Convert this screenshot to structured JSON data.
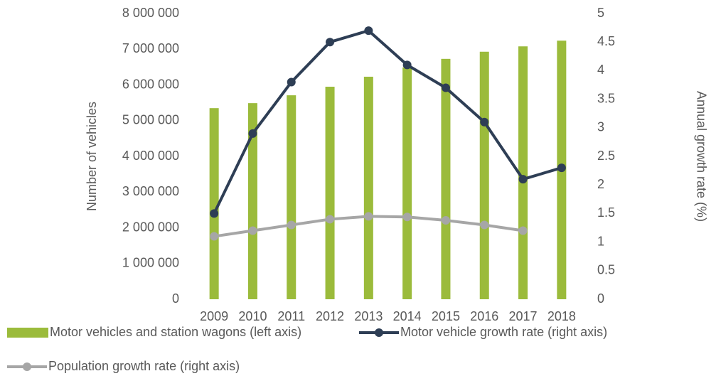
{
  "chart_data": {
    "type": "bar_line",
    "y_label": "Number of vehicles",
    "y2_label": "Annual growth rate (%)",
    "categories": [
      "2009",
      "2010",
      "2011",
      "2012",
      "2013",
      "2014",
      "2015",
      "2016",
      "2017",
      "2018"
    ],
    "series": [
      {
        "name": "Motor vehicles and station wagons (left axis)",
        "type": "bar",
        "color": "#9bbb3b",
        "values": [
          5350000,
          5490000,
          5710000,
          5950000,
          6230000,
          6490000,
          6730000,
          6930000,
          7080000,
          7240000
        ]
      },
      {
        "name": "Motor vehicle growth rate (right axis)",
        "type": "line",
        "axis": "y2",
        "color": "#2e3e55",
        "values": [
          1.5,
          2.9,
          3.8,
          4.5,
          4.7,
          4.1,
          3.7,
          3.1,
          2.1,
          2.3
        ]
      },
      {
        "name": "Population growth rate (right axis)",
        "type": "line",
        "axis": "y2",
        "color": "#a6a6a6",
        "values": [
          1.1,
          1.2,
          1.3,
          1.4,
          1.45,
          1.44,
          1.38,
          1.3,
          1.2,
          null
        ]
      }
    ],
    "ylim": [
      0,
      8000000
    ],
    "yticks": [
      {
        "value": 0,
        "label": "0"
      },
      {
        "value": 1000000,
        "label": "1 000 000"
      },
      {
        "value": 2000000,
        "label": "2 000 000"
      },
      {
        "value": 3000000,
        "label": "3 000 000"
      },
      {
        "value": 4000000,
        "label": "4 000 000"
      },
      {
        "value": 5000000,
        "label": "5 000 000"
      },
      {
        "value": 6000000,
        "label": "6 000 000"
      },
      {
        "value": 7000000,
        "label": "7 000 000"
      },
      {
        "value": 8000000,
        "label": "8 000 000"
      }
    ],
    "y2lim": [
      0,
      5
    ],
    "y2ticks": [
      0,
      0.5,
      1,
      1.5,
      2,
      2.5,
      3,
      3.5,
      4,
      4.5,
      5
    ],
    "grid": false
  }
}
